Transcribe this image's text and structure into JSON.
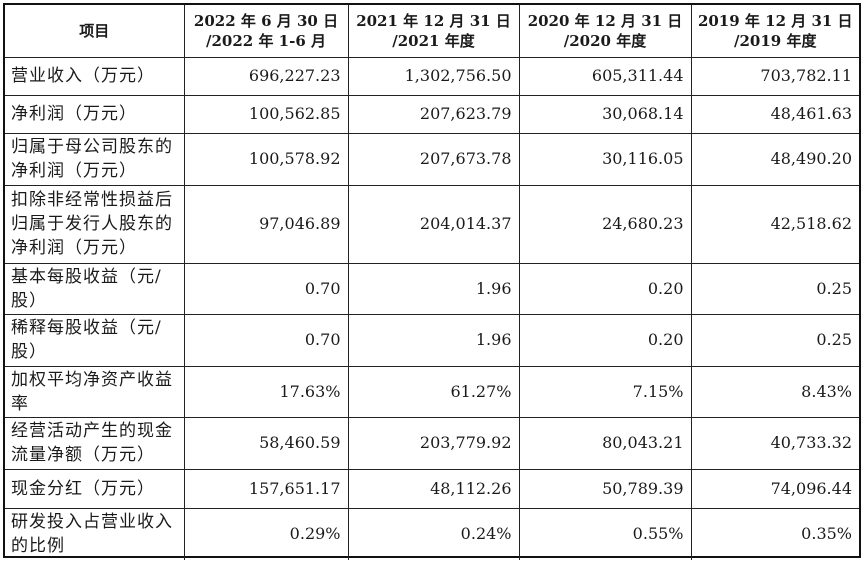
{
  "table": {
    "headers": [
      {
        "line1": "项目",
        "line2": ""
      },
      {
        "line1": "2022 年 6 月 30 日",
        "line2": "/2022 年 1-6 月"
      },
      {
        "line1": "2021 年 12 月 31 日",
        "line2": "/2021 年度"
      },
      {
        "line1": "2020 年 12 月 31 日",
        "line2": "/2020 年度"
      },
      {
        "line1": "2019 年 12 月 31 日",
        "line2": "/2019 年度"
      }
    ],
    "rows": [
      {
        "label": "营业收入（万元）",
        "values": [
          "696,227.23",
          "1,302,756.50",
          "605,311.44",
          "703,782.11"
        ]
      },
      {
        "label": "净利润（万元）",
        "values": [
          "100,562.85",
          "207,623.79",
          "30,068.14",
          "48,461.63"
        ]
      },
      {
        "label": "归属于母公司股东的净利润（万元）",
        "values": [
          "100,578.92",
          "207,673.78",
          "30,116.05",
          "48,490.20"
        ]
      },
      {
        "label": "扣除非经常性损益后归属于发行人股东的净利润（万元）",
        "values": [
          "97,046.89",
          "204,014.37",
          "24,680.23",
          "42,518.62"
        ]
      },
      {
        "label": "基本每股收益（元/股）",
        "values": [
          "0.70",
          "1.96",
          "0.20",
          "0.25"
        ]
      },
      {
        "label": "稀释每股收益（元/股）",
        "values": [
          "0.70",
          "1.96",
          "0.20",
          "0.25"
        ]
      },
      {
        "label": "加权平均净资产收益率",
        "values": [
          "17.63%",
          "61.27%",
          "7.15%",
          "8.43%"
        ]
      },
      {
        "label": "经营活动产生的现金流量净额（万元）",
        "values": [
          "58,460.59",
          "203,779.92",
          "80,043.21",
          "40,733.32"
        ]
      },
      {
        "label": "现金分红（万元）",
        "values": [
          "157,651.17",
          "48,112.26",
          "50,789.39",
          "74,096.44"
        ]
      },
      {
        "label": "研发投入占营业收入的比例",
        "values": [
          "0.29%",
          "0.24%",
          "0.55%",
          "0.35%"
        ]
      }
    ]
  }
}
